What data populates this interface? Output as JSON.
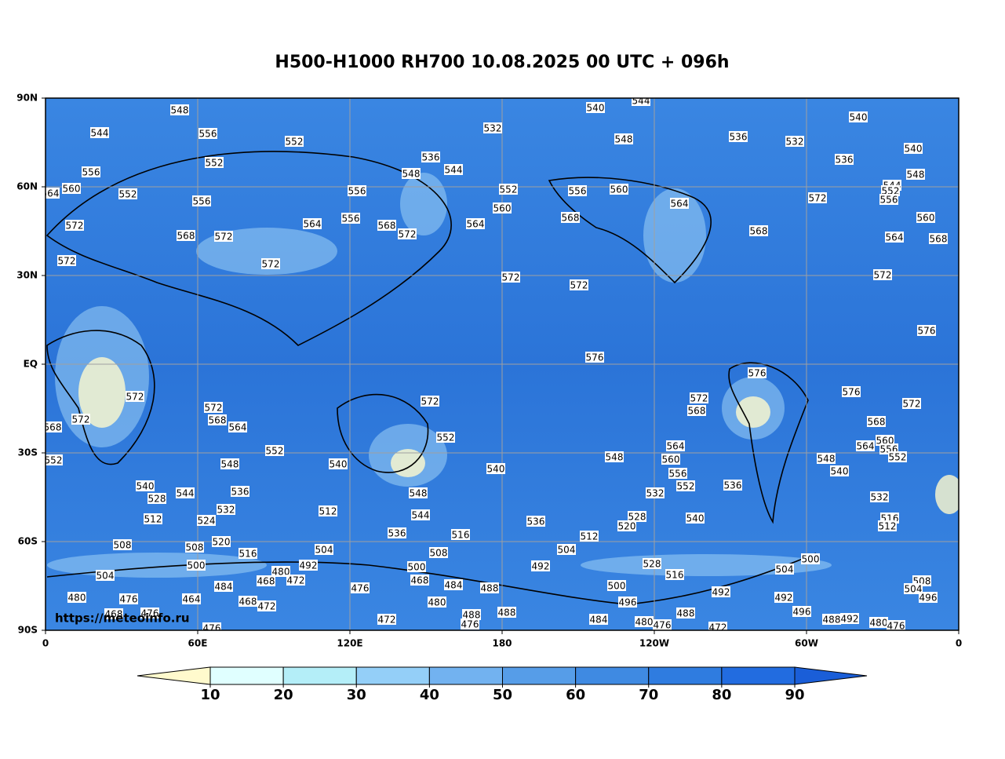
{
  "title": "H500-H1000 RH700 10.08.2025 00 UTC + 096h",
  "y_axis_labels": [
    "90N",
    "60N",
    "30N",
    "EQ",
    "30S",
    "60S",
    "90S"
  ],
  "x_axis_labels": [
    "0",
    "60E",
    "120E",
    "180",
    "120W",
    "60W",
    "0"
  ],
  "colorbar": {
    "ticks": [
      10,
      20,
      30,
      40,
      50,
      60,
      70,
      80,
      90
    ],
    "colors": [
      "#fffacd",
      "#e0ffff",
      "#b4eef8",
      "#94cff8",
      "#72b2f0",
      "#569de8",
      "#3f8ae2",
      "#2f7ce0",
      "#226ce0",
      "#1a5ed8"
    ]
  },
  "contour_labels": [
    548,
    556,
    552,
    552,
    556,
    552,
    556,
    560,
    572,
    568,
    572,
    572,
    556,
    556,
    564,
    568,
    572,
    548,
    536,
    544,
    532,
    552,
    560,
    564,
    568,
    572,
    572,
    540,
    544,
    548,
    556,
    560,
    564,
    568,
    572,
    532,
    536,
    540,
    540,
    564,
    572,
    576,
    576,
    576,
    576,
    572,
    572,
    568,
    572,
    572,
    572,
    568,
    564,
    552,
    548,
    540,
    540,
    572,
    552,
    540,
    528,
    544,
    536,
    532,
    512,
    524,
    512,
    548,
    544,
    536,
    516,
    536,
    548,
    564,
    560,
    556,
    552,
    532,
    536,
    540,
    520,
    528,
    512,
    508,
    508,
    520,
    516,
    504,
    508,
    504,
    528,
    516,
    492,
    500,
    500,
    492,
    480,
    472,
    484,
    468,
    484,
    488,
    476,
    500,
    496,
    492,
    492,
    496,
    488,
    492,
    480,
    476,
    508,
    504,
    496,
    564,
    568,
    560,
    556,
    552,
    548,
    540,
    532,
    516,
    512,
    480,
    504,
    476,
    468,
    476,
    464,
    468,
    472,
    468,
    480,
    488,
    488,
    484,
    480,
    476,
    488,
    472,
    472,
    476,
    476,
    544,
    564,
    572,
    548,
    544,
    552,
    556,
    560,
    568,
    536,
    500,
    504,
    552,
    568
  ],
  "watermark": "https://meteoinfo.ru"
}
